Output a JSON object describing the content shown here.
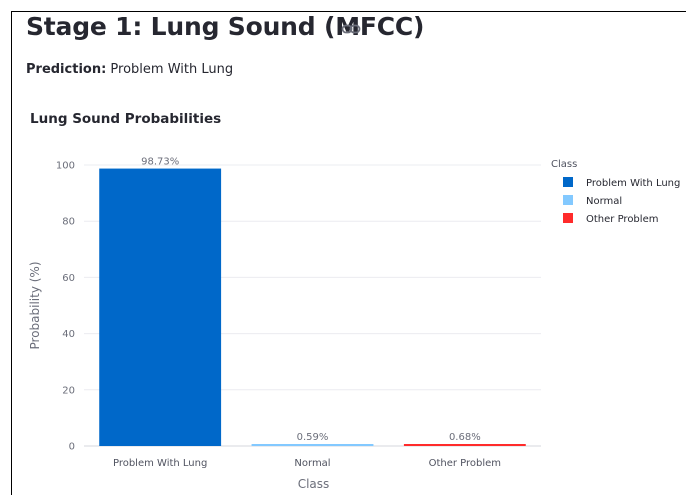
{
  "page": {
    "title": "Stage 1: Lung Sound (MFCC)",
    "link_icon": "link-icon",
    "prediction_label": "Prediction:",
    "prediction_value": "Problem With Lung"
  },
  "chart_data": {
    "type": "bar",
    "title": "Lung Sound Probabilities",
    "xlabel": "Class",
    "ylabel": "Probability (%)",
    "ylim": [
      0,
      100
    ],
    "yticks": [
      0,
      20,
      40,
      60,
      80,
      100
    ],
    "categories": [
      "Problem With Lung",
      "Normal",
      "Other Problem"
    ],
    "values": [
      98.73,
      0.59,
      0.68
    ],
    "data_labels": [
      "98.73%",
      "0.59%",
      "0.68%"
    ],
    "colors": [
      "#0068c9",
      "#83c9ff",
      "#ff2b2b"
    ],
    "grid": true,
    "legend": {
      "title": "Class",
      "placement": "right",
      "entries": [
        "Problem With Lung",
        "Normal",
        "Other Problem"
      ]
    }
  }
}
